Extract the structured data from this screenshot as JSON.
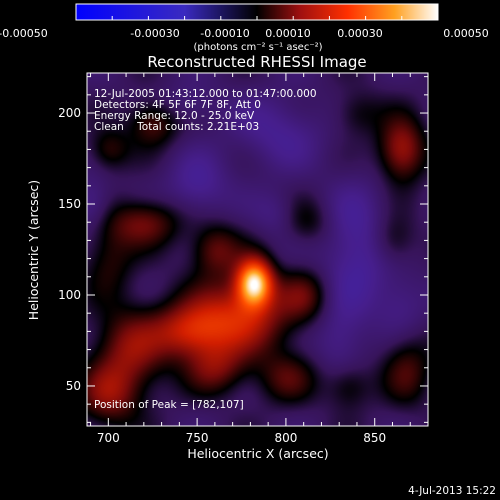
{
  "chart_data": {
    "type": "heatmap",
    "title": "Reconstructed RHESSI Image",
    "xlabel": "Heliocentric X (arcsec)",
    "ylabel": "Heliocentric Y (arcsec)",
    "xlim": [
      688,
      880
    ],
    "ylim": [
      28,
      222
    ],
    "x_ticks": [
      700,
      750,
      800,
      850
    ],
    "y_ticks": [
      50,
      100,
      150,
      200
    ],
    "colorbar": {
      "ticks": [
        "-0.00050",
        "-0.00030",
        "-0.00010",
        "0.00010",
        "0.00030",
        "0.00050"
      ],
      "label": "(photons cm⁻² s⁻¹ asec⁻²)",
      "range": [
        -0.0005,
        0.0005
      ]
    },
    "annotations": [
      "12-Jul-2005 01:43:12.000 to 01:47:00.000",
      "Detectors: 4F 5F 6F 7F 8F, Att 0",
      "Energy Range: 12.0 - 25.0 keV",
      "Clean    Total counts: 2.21E+03"
    ],
    "peak_label": "Position of Peak = [782,107]",
    "peak": [
      782,
      107
    ],
    "blobs": [
      {
        "x": 782,
        "y": 107,
        "sx": 7,
        "sy": 9,
        "v": 0.0005
      },
      {
        "x": 772,
        "y": 88,
        "sx": 20,
        "sy": 14,
        "v": 0.00026
      },
      {
        "x": 745,
        "y": 80,
        "sx": 14,
        "sy": 10,
        "v": 0.0002
      },
      {
        "x": 712,
        "y": 70,
        "sx": 14,
        "sy": 16,
        "v": 0.00018
      },
      {
        "x": 700,
        "y": 45,
        "sx": 12,
        "sy": 12,
        "v": 0.00016
      },
      {
        "x": 760,
        "y": 60,
        "sx": 12,
        "sy": 10,
        "v": 0.00015
      },
      {
        "x": 800,
        "y": 55,
        "sx": 12,
        "sy": 10,
        "v": 0.00012
      },
      {
        "x": 810,
        "y": 100,
        "sx": 10,
        "sy": 10,
        "v": 0.00012
      },
      {
        "x": 720,
        "y": 140,
        "sx": 14,
        "sy": 9,
        "v": 0.00016
      },
      {
        "x": 760,
        "y": 125,
        "sx": 10,
        "sy": 10,
        "v": 0.00015
      },
      {
        "x": 700,
        "y": 120,
        "sx": 10,
        "sy": 14,
        "v": 0.0001
      },
      {
        "x": 725,
        "y": 195,
        "sx": 10,
        "sy": 9,
        "v": 0.00014
      },
      {
        "x": 700,
        "y": 180,
        "sx": 8,
        "sy": 8,
        "v": 0.00011
      },
      {
        "x": 812,
        "y": 140,
        "sx": 10,
        "sy": 9,
        "v": 8e-05
      },
      {
        "x": 865,
        "y": 180,
        "sx": 9,
        "sy": 12,
        "v": 0.00022
      },
      {
        "x": 860,
        "y": 130,
        "sx": 9,
        "sy": 10,
        "v": 0.0001
      },
      {
        "x": 868,
        "y": 60,
        "sx": 10,
        "sy": 14,
        "v": 0.00012
      },
      {
        "x": 835,
        "y": 50,
        "sx": 9,
        "sy": 9,
        "v": 0.0001
      },
      {
        "x": 840,
        "y": 200,
        "sx": 10,
        "sy": 9,
        "v": 8e-05
      },
      {
        "x": 750,
        "y": 160,
        "sx": 12,
        "sy": 12,
        "v": -0.0001
      },
      {
        "x": 840,
        "y": 125,
        "sx": 14,
        "sy": 24,
        "v": -0.00012
      },
      {
        "x": 830,
        "y": 75,
        "sx": 10,
        "sy": 14,
        "v": -8e-05
      },
      {
        "x": 795,
        "y": 190,
        "sx": 18,
        "sy": 14,
        "v": -9e-05
      },
      {
        "x": 690,
        "y": 150,
        "sx": 8,
        "sy": 10,
        "v": -9e-05
      },
      {
        "x": 865,
        "y": 95,
        "sx": 10,
        "sy": 12,
        "v": -7e-05
      },
      {
        "x": 745,
        "y": 205,
        "sx": 12,
        "sy": 8,
        "v": -6e-05
      },
      {
        "x": 795,
        "y": 145,
        "sx": 9,
        "sy": 9,
        "v": -6e-05
      }
    ]
  },
  "footer_date": "4-Jul-2013 15:22"
}
